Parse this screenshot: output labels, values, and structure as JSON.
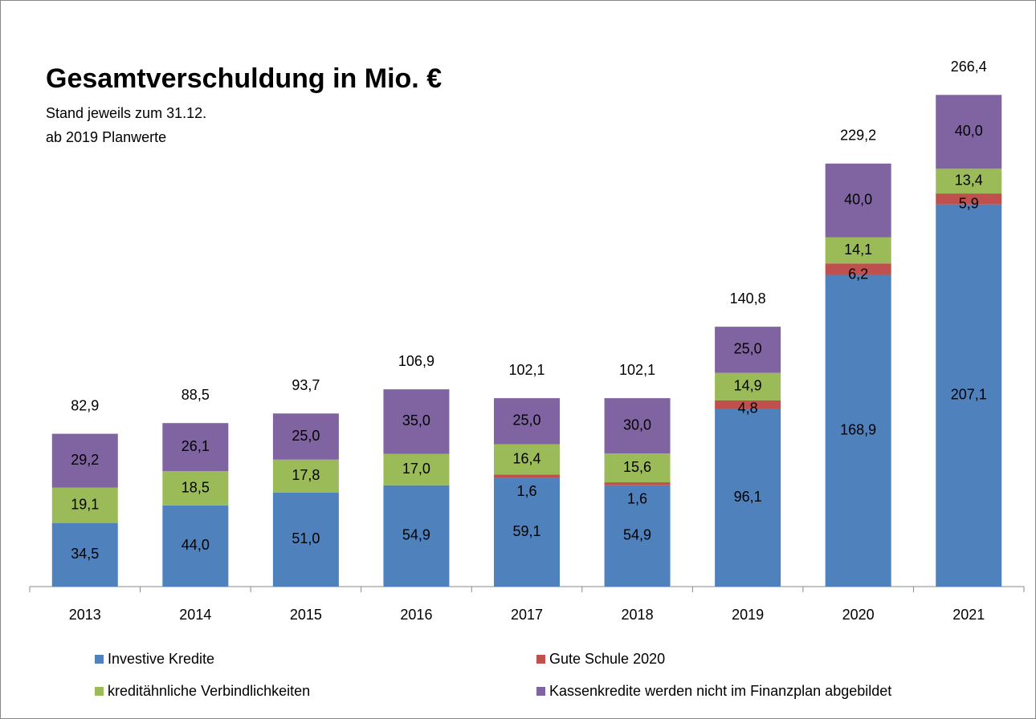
{
  "chart_data": {
    "type": "stacked_bar",
    "title": "Gesamtverschuldung in Mio. €",
    "subtitle": [
      "Stand jeweils  zum 31.12.",
      "ab 2019 Planwerte"
    ],
    "categories": [
      "2013",
      "2014",
      "2015",
      "2016",
      "2017",
      "2018",
      "2019",
      "2020",
      "2021"
    ],
    "series": [
      {
        "name": "Investive Kredite",
        "color": "#4f81bd",
        "values": [
          34.5,
          44.0,
          51.0,
          54.9,
          59.1,
          54.9,
          96.1,
          168.9,
          207.1
        ],
        "value_labels": [
          "34,5",
          "44,0",
          "51,0",
          "54,9",
          "59,1",
          "54,9",
          "96,1",
          "168,9",
          "207,1"
        ]
      },
      {
        "name": "Gute Schule 2020",
        "color": "#c0504d",
        "values": [
          null,
          null,
          null,
          null,
          1.6,
          1.6,
          4.8,
          6.2,
          5.9
        ],
        "value_labels": [
          null,
          null,
          null,
          null,
          "1,6",
          "1,6",
          "4,8",
          "6,2",
          "5,9"
        ]
      },
      {
        "name": "kreditähnliche Verbindlichkeiten",
        "color": "#9bbb59",
        "values": [
          19.1,
          18.5,
          17.8,
          17.0,
          16.4,
          15.6,
          14.9,
          14.1,
          13.4
        ],
        "value_labels": [
          "19,1",
          "18,5",
          "17,8",
          "17,0",
          "16,4",
          "15,6",
          "14,9",
          "14,1",
          "13,4"
        ]
      },
      {
        "name": "Kassenkredite werden nicht im Finanzplan abgebildet",
        "color": "#8064a2",
        "values": [
          29.2,
          26.1,
          25.0,
          35.0,
          25.0,
          30.0,
          25.0,
          40.0,
          40.0
        ],
        "value_labels": [
          "29,2",
          "26,1",
          "25,0",
          "35,0",
          "25,0",
          "30,0",
          "25,0",
          "40,0",
          "40,0"
        ]
      }
    ],
    "totals": [
      82.9,
      88.5,
      93.7,
      106.9,
      102.1,
      102.1,
      140.8,
      229.2,
      266.4
    ],
    "total_labels": [
      "82,9",
      "88,5",
      "93,7",
      "106,9",
      "102,1",
      "102,1",
      "140,8",
      "229,2",
      "266,4"
    ],
    "ylim": [
      0,
      300
    ]
  }
}
